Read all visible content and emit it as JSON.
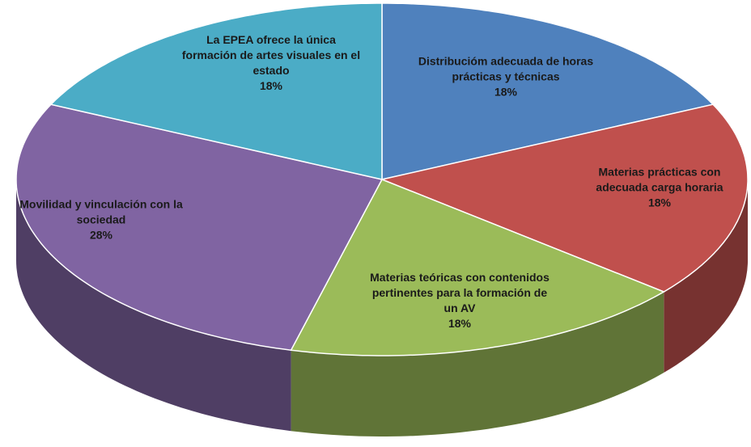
{
  "chart_data": {
    "type": "pie",
    "categories": [
      "Distribucióm adecuada de horas prácticas y técnicas",
      "Materias prácticas con adecuada carga horaria",
      "Materias teóricas con contenidos pertinentes para la formación de un AV",
      "Movilidad y vinculación con la sociedad",
      "La EPEA ofrece la única formación de artes visuales en el estado"
    ],
    "values": [
      18,
      18,
      18,
      28,
      18
    ],
    "value_labels": [
      "18%",
      "18%",
      "18%",
      "28%",
      "18%"
    ],
    "colors": [
      "#4f81bd",
      "#c0504d",
      "#9bbb59",
      "#8064a2",
      "#4bacc6"
    ]
  }
}
